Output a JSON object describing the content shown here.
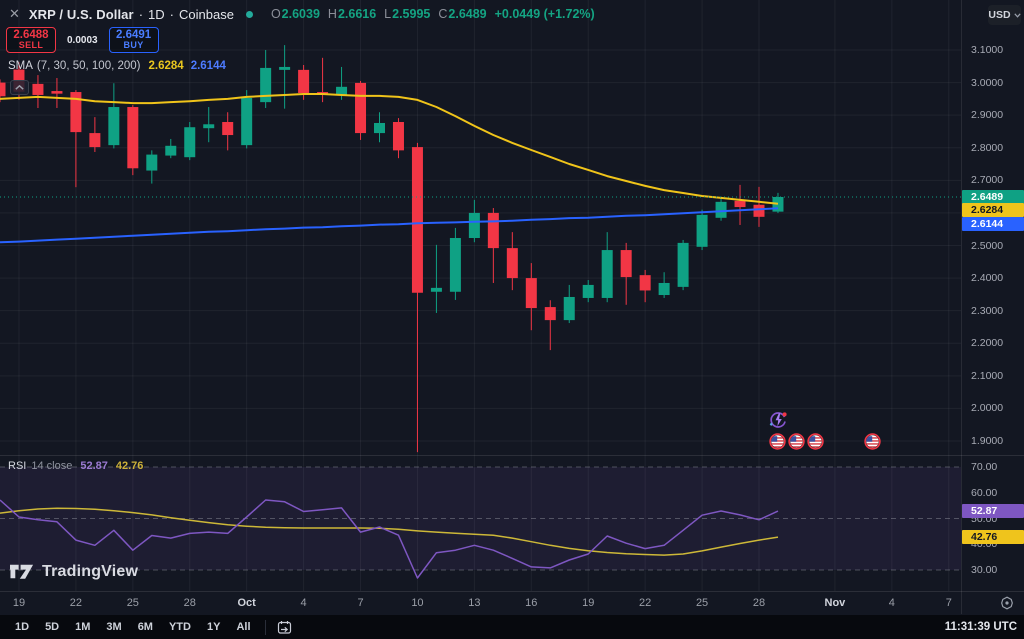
{
  "header": {
    "symbol": "XRP / U.S. Dollar",
    "separator": "·",
    "interval": "1D",
    "exchange": "Coinbase",
    "ohlc": {
      "o_label": "O",
      "o": "2.6039",
      "h_label": "H",
      "h": "2.6616",
      "l_label": "L",
      "l": "2.5995",
      "c_label": "C",
      "c": "2.6489",
      "change": "+0.0449 (+1.72%)"
    }
  },
  "icons": {
    "close": "✕"
  },
  "trade_panel": {
    "sell_price": "2.6488",
    "sell_label": "SELL",
    "spread": "0.0003",
    "buy_price": "2.6491",
    "buy_label": "BUY"
  },
  "legend": {
    "name": "SMA",
    "params": "(7, 30, 50, 100, 200)",
    "value_1": "2.6284",
    "value_2": "2.6144"
  },
  "rsi_legend": {
    "name": "RSI",
    "params": "14 close",
    "value_1": "52.87",
    "value_2": "42.76"
  },
  "price_scale": {
    "currency": "USD",
    "ticks": [
      "3.1000",
      "3.0000",
      "2.9000",
      "2.8000",
      "2.7000",
      "2.6000",
      "2.5000",
      "2.4000",
      "2.3000",
      "2.2000",
      "2.1000",
      "2.0000",
      "1.9000"
    ],
    "tags": [
      {
        "text": "2.6489",
        "value": 2.6489,
        "pane": "price",
        "bg": "#0fa184",
        "fg": "#ffffff"
      },
      {
        "text": "2.6284",
        "value": 2.6284,
        "pane": "price",
        "bg": "#efc41c",
        "fg": "#131722"
      },
      {
        "text": "2.6144",
        "value": 2.6144,
        "pane": "price",
        "bg": "#2962ff",
        "fg": "#ffffff"
      },
      {
        "text": "52.87",
        "value": 52.87,
        "pane": "rsi",
        "bg": "#7e57c2",
        "fg": "#ffffff"
      },
      {
        "text": "42.76",
        "value": 42.76,
        "pane": "rsi",
        "bg": "#efc41c",
        "fg": "#131722"
      }
    ]
  },
  "rsi_scale": {
    "ticks": [
      "70.00",
      "60.00",
      "50.00",
      "40.00",
      "30.00"
    ],
    "tick_values": [
      70,
      60,
      50,
      40,
      30
    ]
  },
  "time_scale": {
    "ticks": [
      {
        "label": "19",
        "bar": 1
      },
      {
        "label": "22",
        "bar": 4
      },
      {
        "label": "25",
        "bar": 7
      },
      {
        "label": "28",
        "bar": 10
      },
      {
        "label": "Oct",
        "bar": 13,
        "month": true
      },
      {
        "label": "4",
        "bar": 16
      },
      {
        "label": "7",
        "bar": 19
      },
      {
        "label": "10",
        "bar": 22
      },
      {
        "label": "13",
        "bar": 25
      },
      {
        "label": "16",
        "bar": 28
      },
      {
        "label": "19",
        "bar": 31
      },
      {
        "label": "22",
        "bar": 34
      },
      {
        "label": "25",
        "bar": 37
      },
      {
        "label": "28",
        "bar": 40
      },
      {
        "label": "Nov",
        "bar": 44,
        "month": true
      },
      {
        "label": "4",
        "bar": 47
      },
      {
        "label": "7",
        "bar": 50
      }
    ]
  },
  "toolbar": {
    "ranges": [
      "1D",
      "5D",
      "1M",
      "3M",
      "6M",
      "YTD",
      "1Y",
      "All"
    ],
    "clock": "11:31:39 UTC"
  },
  "logo": {
    "text": "TradingView"
  },
  "colors": {
    "bg": "#131722",
    "up": "#0fa184",
    "down": "#f23645",
    "sma_fast": "#f0c41a",
    "sma_slow": "#2962ff",
    "rsi_line": "#7e57c2",
    "rsi_ma": "#cdb838",
    "grid": "rgba(255,255,255,0.055)",
    "rsi_band": "rgba(126,87,194,0.10)",
    "last_price_line": "#0fa184"
  },
  "chart_data": {
    "type": "candlestick",
    "title": "XRP / U.S. Dollar, 1D, Coinbase",
    "price_ylim": [
      1.85,
      3.25
    ],
    "rsi_levels": [
      70,
      50,
      30
    ],
    "rsi_band": [
      30,
      70
    ],
    "last_price": 2.6489,
    "dates": [
      "Sep 18",
      "Sep 19",
      "Sep 20",
      "Sep 21",
      "Sep 22",
      "Sep 23",
      "Sep 24",
      "Sep 25",
      "Sep 26",
      "Sep 27",
      "Sep 28",
      "Sep 29",
      "Sep 30",
      "Oct 1",
      "Oct 2",
      "Oct 3",
      "Oct 4",
      "Oct 5",
      "Oct 6",
      "Oct 7",
      "Oct 8",
      "Oct 9",
      "Oct 10",
      "Oct 11",
      "Oct 12",
      "Oct 13",
      "Oct 14",
      "Oct 15",
      "Oct 16",
      "Oct 17",
      "Oct 18",
      "Oct 19",
      "Oct 20",
      "Oct 21",
      "Oct 22",
      "Oct 23",
      "Oct 24",
      "Oct 25",
      "Oct 26",
      "Oct 27",
      "Oct 28",
      "Oct 29"
    ],
    "bars": [
      [
        3.0,
        3.01,
        2.94,
        2.958
      ],
      [
        3.04,
        3.062,
        2.947,
        2.972
      ],
      [
        2.996,
        3.023,
        2.922,
        2.962
      ],
      [
        2.974,
        3.014,
        2.922,
        2.966
      ],
      [
        2.971,
        2.977,
        2.679,
        2.848
      ],
      [
        2.845,
        2.894,
        2.787,
        2.802
      ],
      [
        2.808,
        2.998,
        2.798,
        2.925
      ],
      [
        2.925,
        2.931,
        2.716,
        2.737
      ],
      [
        2.73,
        2.792,
        2.69,
        2.779
      ],
      [
        2.776,
        2.827,
        2.768,
        2.806
      ],
      [
        2.771,
        2.879,
        2.762,
        2.863
      ],
      [
        2.86,
        2.925,
        2.817,
        2.872
      ],
      [
        2.879,
        2.909,
        2.792,
        2.839
      ],
      [
        2.808,
        2.977,
        2.798,
        2.953
      ],
      [
        2.94,
        3.1,
        2.922,
        3.045
      ],
      [
        3.039,
        3.115,
        2.92,
        3.048
      ],
      [
        3.039,
        3.054,
        2.947,
        2.968
      ],
      [
        2.971,
        3.076,
        2.94,
        2.962
      ],
      [
        2.962,
        3.048,
        2.947,
        2.987
      ],
      [
        2.999,
        3.005,
        2.824,
        2.845
      ],
      [
        2.845,
        2.909,
        2.817,
        2.876
      ],
      [
        2.879,
        2.891,
        2.768,
        2.792
      ],
      [
        2.802,
        2.815,
        1.866,
        2.355
      ],
      [
        2.358,
        2.502,
        2.293,
        2.37
      ],
      [
        2.358,
        2.554,
        2.333,
        2.523
      ],
      [
        2.523,
        2.64,
        2.51,
        2.6
      ],
      [
        2.6,
        2.615,
        2.385,
        2.492
      ],
      [
        2.492,
        2.541,
        2.363,
        2.4
      ],
      [
        2.4,
        2.446,
        2.24,
        2.308
      ],
      [
        2.311,
        2.332,
        2.179,
        2.271
      ],
      [
        2.271,
        2.379,
        2.262,
        2.342
      ],
      [
        2.339,
        2.394,
        2.326,
        2.379
      ],
      [
        2.339,
        2.541,
        2.326,
        2.486
      ],
      [
        2.486,
        2.508,
        2.318,
        2.403
      ],
      [
        2.409,
        2.425,
        2.326,
        2.362
      ],
      [
        2.348,
        2.418,
        2.339,
        2.385
      ],
      [
        2.373,
        2.517,
        2.363,
        2.508
      ],
      [
        2.496,
        2.61,
        2.486,
        2.594
      ],
      [
        2.585,
        2.65,
        2.576,
        2.634
      ],
      [
        2.637,
        2.686,
        2.563,
        2.618
      ],
      [
        2.625,
        2.68,
        2.557,
        2.588
      ],
      [
        2.6039,
        2.6616,
        2.5995,
        2.6489
      ]
    ],
    "series": [
      {
        "name": "SMA fast",
        "last": 2.6284,
        "values": [
          2.95,
          2.953,
          2.956,
          2.953,
          2.95,
          2.943,
          2.94,
          2.937,
          2.937,
          2.94,
          2.943,
          2.947,
          2.95,
          2.956,
          2.959,
          2.962,
          2.965,
          2.965,
          2.962,
          2.959,
          2.959,
          2.956,
          2.947,
          2.925,
          2.897,
          2.867,
          2.839,
          2.815,
          2.793,
          2.772,
          2.75,
          2.732,
          2.713,
          2.698,
          2.683,
          2.67,
          2.661,
          2.652,
          2.646,
          2.64,
          2.634,
          2.6284
        ]
      },
      {
        "name": "SMA slow",
        "last": 2.6144,
        "values": [
          2.51,
          2.512,
          2.515,
          2.518,
          2.521,
          2.524,
          2.527,
          2.53,
          2.533,
          2.536,
          2.539,
          2.542,
          2.544,
          2.547,
          2.55,
          2.552,
          2.555,
          2.556,
          2.559,
          2.561,
          2.564,
          2.565,
          2.568,
          2.57,
          2.571,
          2.573,
          2.574,
          2.576,
          2.579,
          2.581,
          2.584,
          2.585,
          2.588,
          2.591,
          2.593,
          2.596,
          2.599,
          2.602,
          2.605,
          2.608,
          2.611,
          2.6144
        ]
      },
      {
        "name": "RSI 14",
        "last": 52.87,
        "values": [
          57.2,
          50.6,
          49.5,
          48.7,
          41.6,
          39.6,
          45.4,
          37.7,
          43.4,
          42.4,
          44.2,
          44.7,
          44.2,
          50.6,
          57.2,
          56.5,
          52.7,
          53.4,
          54.1,
          44.7,
          46.7,
          43.5,
          26.9,
          36.7,
          37.7,
          39.6,
          37.7,
          34.5,
          31.2,
          30.8,
          33.9,
          36.2,
          43.2,
          40.4,
          38.3,
          39.6,
          45.4,
          51.3,
          52.9,
          51.4,
          49.5,
          52.87
        ]
      },
      {
        "name": "RSI MA",
        "last": 42.76,
        "values": [
          52.1,
          53.0,
          53.7,
          54.0,
          53.9,
          53.6,
          53.0,
          52.3,
          51.4,
          50.3,
          49.3,
          48.4,
          47.6,
          47.0,
          46.6,
          46.4,
          46.3,
          46.3,
          46.3,
          46.3,
          46.2,
          45.8,
          45.2,
          44.7,
          44.3,
          43.9,
          43.5,
          42.4,
          41.0,
          39.6,
          38.4,
          37.5,
          36.8,
          36.3,
          36.0,
          35.8,
          36.2,
          37.4,
          38.9,
          40.3,
          41.6,
          42.76
        ]
      }
    ],
    "events": {
      "lightning_bar": 41,
      "flag_bars": [
        41,
        42,
        43,
        46
      ]
    }
  }
}
